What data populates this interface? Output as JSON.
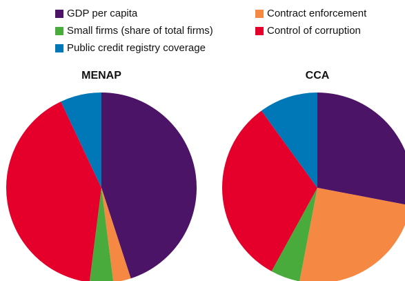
{
  "chart_data": [
    {
      "type": "pie",
      "title": "MENAP",
      "categories": [
        "GDP per capita",
        "Contract enforcement",
        "Small firms (share of total firms)",
        "Control of corruption",
        "Public credit registry coverage"
      ],
      "values": [
        45,
        3,
        4,
        41,
        7
      ],
      "colors": [
        "#4b1466",
        "#f58842",
        "#4aab3d",
        "#e4002b",
        "#0077b6"
      ]
    },
    {
      "type": "pie",
      "title": "CCA",
      "categories": [
        "GDP per capita",
        "Contract enforcement",
        "Small firms (share of total firms)",
        "Control of corruption",
        "Public credit registry coverage"
      ],
      "values": [
        28,
        25,
        5,
        32,
        10
      ],
      "colors": [
        "#4b1466",
        "#f58842",
        "#4aab3d",
        "#e4002b",
        "#0077b6"
      ]
    }
  ]
}
